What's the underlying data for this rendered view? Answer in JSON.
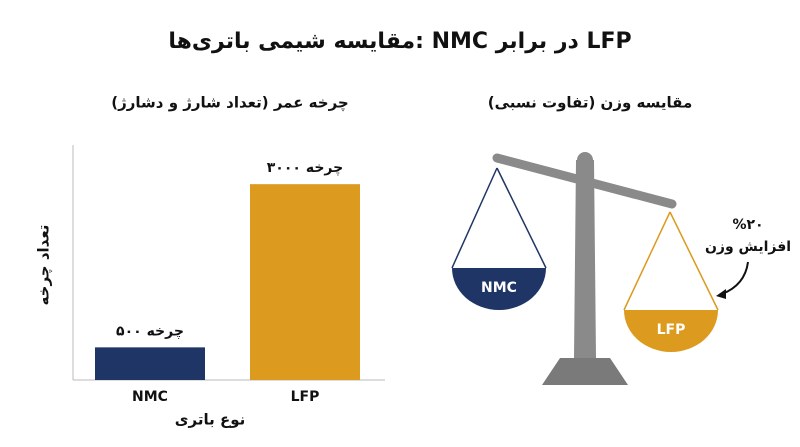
{
  "header": {
    "title": "مقایسه شیمی باتری‌ها: NMC در برابر LFP"
  },
  "chart_data": {
    "type": "bar",
    "title": "چرخه عمر (تعداد شارژ و دشارژ)",
    "x_label": "نوع باتری",
    "y_label": "تعداد چرخه",
    "categories": [
      "NMC",
      "LFP"
    ],
    "values": [
      500,
      3000
    ],
    "value_labels": [
      "۵۰۰ چرخه",
      "۳۰۰۰ چرخه"
    ],
    "colors": [
      "#1f3566",
      "#dc9a1e"
    ],
    "ylim": [
      0,
      3600
    ]
  },
  "scale": {
    "title": "مقایسه وزن (تفاوت نسبی)",
    "left_pan": "NMC",
    "right_pan": "LFP",
    "annotation": [
      "%۲۰",
      "افزایش وزن"
    ]
  }
}
